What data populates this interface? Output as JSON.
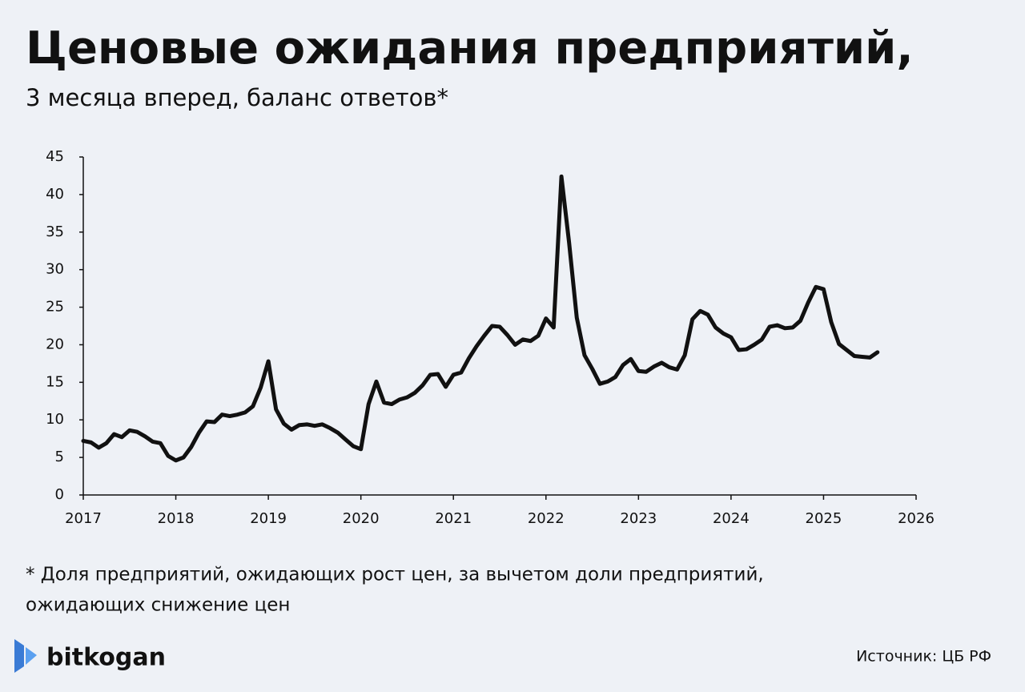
{
  "chart_data": {
    "type": "line",
    "title": "Ценовые ожидания предприятий,",
    "subtitle": "3 месяца вперед, баланс ответов*",
    "footnote": [
      "* Доля предприятий, ожидающих рост цен, за вычетом доли предприятий,",
      "ожидающих снижение цен"
    ],
    "source": "Источник: ЦБ РФ",
    "brand": "bitkogan",
    "color": "#111111",
    "x": [
      2017.0,
      2017.083,
      2017.167,
      2017.25,
      2017.333,
      2017.417,
      2017.5,
      2017.583,
      2017.667,
      2017.75,
      2017.833,
      2017.917,
      2018.0,
      2018.083,
      2018.167,
      2018.25,
      2018.333,
      2018.417,
      2018.5,
      2018.583,
      2018.667,
      2018.75,
      2018.833,
      2018.917,
      2019.0,
      2019.083,
      2019.167,
      2019.25,
      2019.333,
      2019.417,
      2019.5,
      2019.583,
      2019.667,
      2019.75,
      2019.833,
      2019.917,
      2020.0,
      2020.083,
      2020.167,
      2020.25,
      2020.333,
      2020.417,
      2020.5,
      2020.583,
      2020.667,
      2020.75,
      2020.833,
      2020.917,
      2021.0,
      2021.083,
      2021.167,
      2021.25,
      2021.333,
      2021.417,
      2021.5,
      2021.583,
      2021.667,
      2021.75,
      2021.833,
      2021.917,
      2022.0,
      2022.083,
      2022.167,
      2022.25,
      2022.333,
      2022.417,
      2022.5,
      2022.583,
      2022.667,
      2022.75,
      2022.833,
      2022.917,
      2023.0,
      2023.083,
      2023.167,
      2023.25,
      2023.333,
      2023.417,
      2023.5,
      2023.583,
      2023.667,
      2023.75,
      2023.833,
      2023.917,
      2024.0,
      2024.083,
      2024.167,
      2024.25,
      2024.333,
      2024.417,
      2024.5,
      2024.583,
      2024.667,
      2024.75,
      2024.833,
      2024.917,
      2025.0,
      2025.083,
      2025.167,
      2025.25,
      2025.333,
      2025.417,
      2025.5,
      2025.583
    ],
    "values": [
      7.2,
      7.0,
      6.3,
      6.9,
      8.1,
      7.7,
      8.6,
      8.4,
      7.8,
      7.1,
      6.9,
      5.2,
      4.6,
      5.0,
      6.4,
      8.3,
      9.8,
      9.7,
      10.7,
      10.5,
      10.7,
      11.0,
      11.8,
      14.3,
      17.8,
      11.4,
      9.5,
      8.7,
      9.3,
      9.4,
      9.2,
      9.4,
      8.9,
      8.3,
      7.4,
      6.5,
      6.1,
      12.1,
      15.1,
      12.3,
      12.1,
      12.7,
      13.0,
      13.6,
      14.6,
      16.0,
      16.1,
      14.4,
      16.0,
      16.3,
      18.2,
      19.8,
      21.2,
      22.5,
      22.4,
      21.3,
      20.0,
      20.7,
      20.5,
      21.2,
      23.5,
      22.3,
      42.4,
      33.6,
      23.6,
      18.6,
      16.8,
      14.8,
      15.1,
      15.7,
      17.3,
      18.1,
      16.5,
      16.4,
      17.1,
      17.6,
      17.0,
      16.7,
      18.6,
      23.4,
      24.5,
      24.0,
      22.3,
      21.5,
      21.0,
      19.3,
      19.4,
      20.0,
      20.7,
      22.4,
      22.6,
      22.2,
      22.3,
      23.2,
      25.6,
      27.7,
      27.4,
      23.0,
      20.1,
      19.3,
      18.5,
      18.4,
      18.3,
      19.0
    ],
    "xlim": [
      2017,
      2026
    ],
    "xticks": [
      2017,
      2018,
      2019,
      2020,
      2021,
      2022,
      2023,
      2024,
      2025,
      2026
    ],
    "ylim": [
      0,
      45
    ],
    "yticks": [
      0,
      5,
      10,
      15,
      20,
      25,
      30,
      35,
      40,
      45
    ]
  }
}
